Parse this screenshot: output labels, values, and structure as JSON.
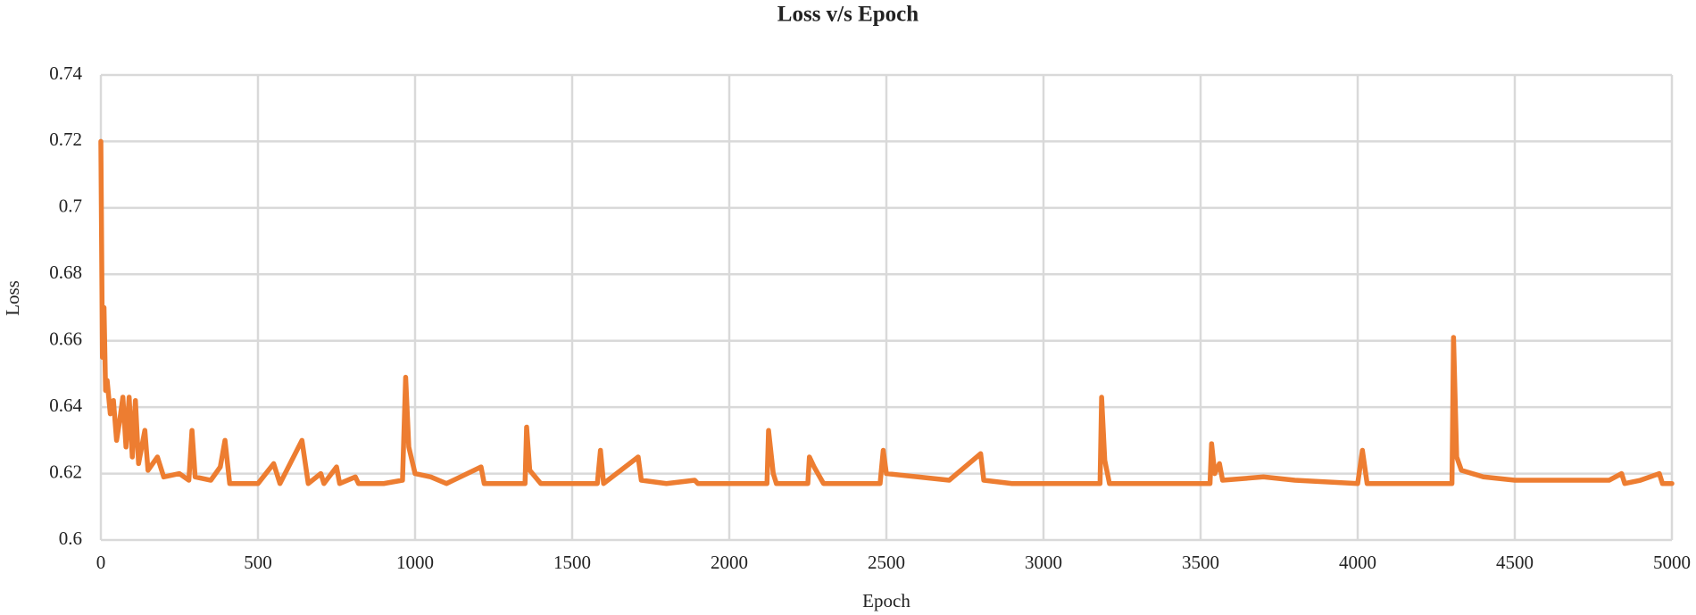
{
  "chart_data": {
    "type": "line",
    "title": "Loss v/s Epoch",
    "x_label": "Epoch",
    "y_label": "Loss",
    "x": [
      0,
      5,
      10,
      15,
      20,
      30,
      40,
      50,
      60,
      70,
      80,
      90,
      100,
      110,
      120,
      140,
      150,
      180,
      200,
      250,
      280,
      290,
      300,
      350,
      380,
      395,
      410,
      450,
      500,
      550,
      570,
      640,
      660,
      700,
      710,
      750,
      760,
      810,
      820,
      900,
      960,
      970,
      980,
      1000,
      1050,
      1100,
      1210,
      1220,
      1350,
      1355,
      1365,
      1400,
      1500,
      1580,
      1590,
      1600,
      1710,
      1720,
      1800,
      1890,
      1900,
      2050,
      2120,
      2125,
      2140,
      2150,
      2250,
      2255,
      2270,
      2300,
      2480,
      2490,
      2500,
      2600,
      2700,
      2800,
      2810,
      2900,
      3000,
      3180,
      3185,
      3195,
      3210,
      3400,
      3530,
      3535,
      3545,
      3560,
      3570,
      3700,
      3800,
      4000,
      4015,
      4030,
      4300,
      4305,
      4315,
      4330,
      4400,
      4500,
      4800,
      4840,
      4850,
      4900,
      4960,
      4970,
      5000
    ],
    "values": [
      0.72,
      0.655,
      0.67,
      0.645,
      0.648,
      0.638,
      0.642,
      0.63,
      0.636,
      0.643,
      0.628,
      0.643,
      0.625,
      0.642,
      0.623,
      0.633,
      0.621,
      0.625,
      0.619,
      0.62,
      0.618,
      0.633,
      0.619,
      0.618,
      0.622,
      0.63,
      0.617,
      0.617,
      0.617,
      0.623,
      0.617,
      0.63,
      0.617,
      0.62,
      0.617,
      0.622,
      0.617,
      0.619,
      0.617,
      0.617,
      0.618,
      0.649,
      0.628,
      0.62,
      0.619,
      0.617,
      0.622,
      0.617,
      0.617,
      0.634,
      0.621,
      0.617,
      0.617,
      0.617,
      0.627,
      0.617,
      0.625,
      0.618,
      0.617,
      0.618,
      0.617,
      0.617,
      0.617,
      0.633,
      0.62,
      0.617,
      0.617,
      0.625,
      0.622,
      0.617,
      0.617,
      0.627,
      0.62,
      0.619,
      0.618,
      0.626,
      0.618,
      0.617,
      0.617,
      0.617,
      0.643,
      0.624,
      0.617,
      0.617,
      0.617,
      0.629,
      0.62,
      0.623,
      0.618,
      0.619,
      0.618,
      0.617,
      0.627,
      0.617,
      0.617,
      0.661,
      0.625,
      0.621,
      0.619,
      0.618,
      0.618,
      0.62,
      0.617,
      0.618,
      0.62,
      0.617,
      0.617
    ],
    "color": "#ed7d31",
    "xlim": [
      0,
      5000
    ],
    "xticks": [
      0,
      500,
      1000,
      1500,
      2000,
      2500,
      3000,
      3500,
      4000,
      4500,
      5000
    ],
    "ylim": [
      0.6,
      0.74
    ],
    "yticks": [
      0.6,
      0.62,
      0.64,
      0.66,
      0.68,
      0.7,
      0.72,
      0.74
    ],
    "grid": true
  }
}
